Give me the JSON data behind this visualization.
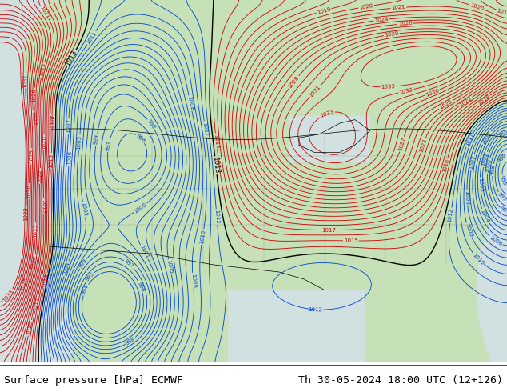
{
  "title_left": "Surface pressure [hPa] ECMWF",
  "title_right": "Th 30-05-2024 18:00 UTC (12+126)",
  "fig_width": 6.34,
  "fig_height": 4.9,
  "dpi": 100,
  "footer_fontsize": 9.5,
  "contour_interval": 1,
  "pressure_min": 996,
  "pressure_max": 1032,
  "land_color": [
    0.78,
    0.88,
    0.72
  ],
  "ocean_color": [
    0.88,
    0.92,
    0.88
  ],
  "pacific_color": [
    0.82,
    0.88,
    0.88
  ],
  "blue_color": "#0044cc",
  "red_color": "#cc0000",
  "black_color": "#000000"
}
